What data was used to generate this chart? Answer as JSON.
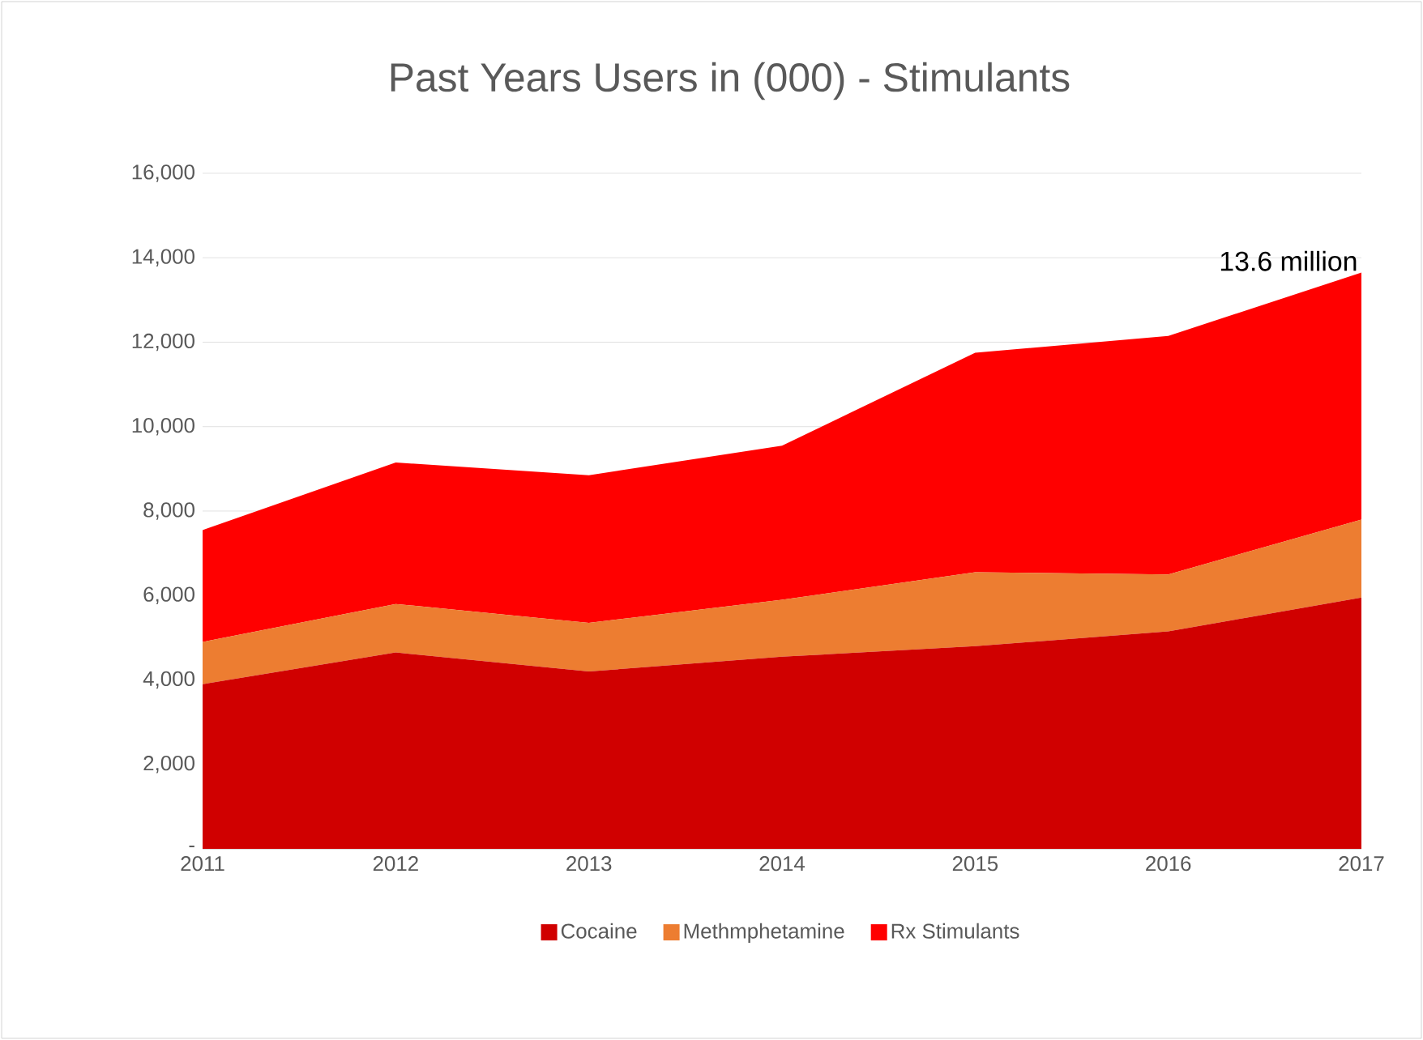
{
  "chart_data": {
    "type": "area",
    "stacked": true,
    "title": "Past Years Users in (000) - Stimulants",
    "categories": [
      "2011",
      "2012",
      "2013",
      "2014",
      "2015",
      "2016",
      "2017"
    ],
    "series": [
      {
        "name": "Cocaine",
        "color": "#d00000",
        "values": [
          3900,
          4650,
          4200,
          4550,
          4800,
          5150,
          5950
        ]
      },
      {
        "name": "Methmphetamine",
        "color": "#ed7d31",
        "values": [
          1000,
          1150,
          1150,
          1350,
          1750,
          1350,
          1850
        ]
      },
      {
        "name": "Rx Stimulants",
        "color": "#ff0000",
        "values": [
          2650,
          3350,
          3500,
          3650,
          5200,
          5650,
          5850
        ]
      }
    ],
    "ylim": [
      0,
      16000
    ],
    "yticks": [
      {
        "value": 0,
        "label": "-"
      },
      {
        "value": 2000,
        "label": "2,000"
      },
      {
        "value": 4000,
        "label": "4,000"
      },
      {
        "value": 6000,
        "label": "6,000"
      },
      {
        "value": 8000,
        "label": "8,000"
      },
      {
        "value": 10000,
        "label": "10,000"
      },
      {
        "value": 12000,
        "label": "12,000"
      },
      {
        "value": 14000,
        "label": "14,000"
      },
      {
        "value": 16000,
        "label": "16,000"
      }
    ],
    "grid": "y",
    "legend": "bottom",
    "annotations": [
      {
        "text": "13.6 million",
        "x": "2017",
        "y": 13600
      }
    ]
  }
}
